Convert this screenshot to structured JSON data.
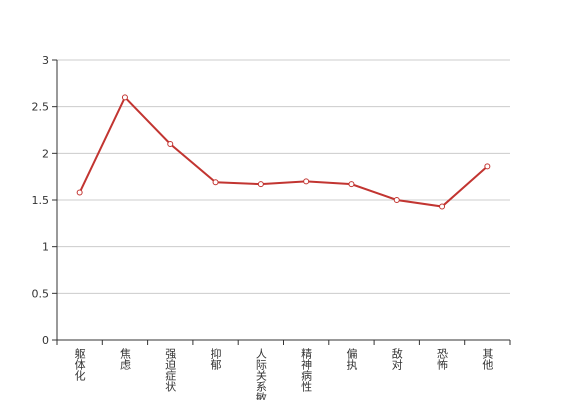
{
  "chart_data": {
    "type": "line",
    "categories": [
      "躯体化",
      "焦虑",
      "强迫症状",
      "抑郁",
      "人际关系敏感",
      "精神病性",
      "偏执",
      "敌对",
      "恐怖",
      "其他"
    ],
    "series": [
      {
        "color": "#c23531",
        "values": [
          1.58,
          2.6,
          2.1,
          1.69,
          1.67,
          1.7,
          1.67,
          1.5,
          1.43,
          1.86
        ]
      }
    ],
    "ylim": [
      0,
      3
    ],
    "yticks": [
      0,
      0.5,
      1,
      1.5,
      2,
      2.5,
      3
    ],
    "grid": true
  }
}
